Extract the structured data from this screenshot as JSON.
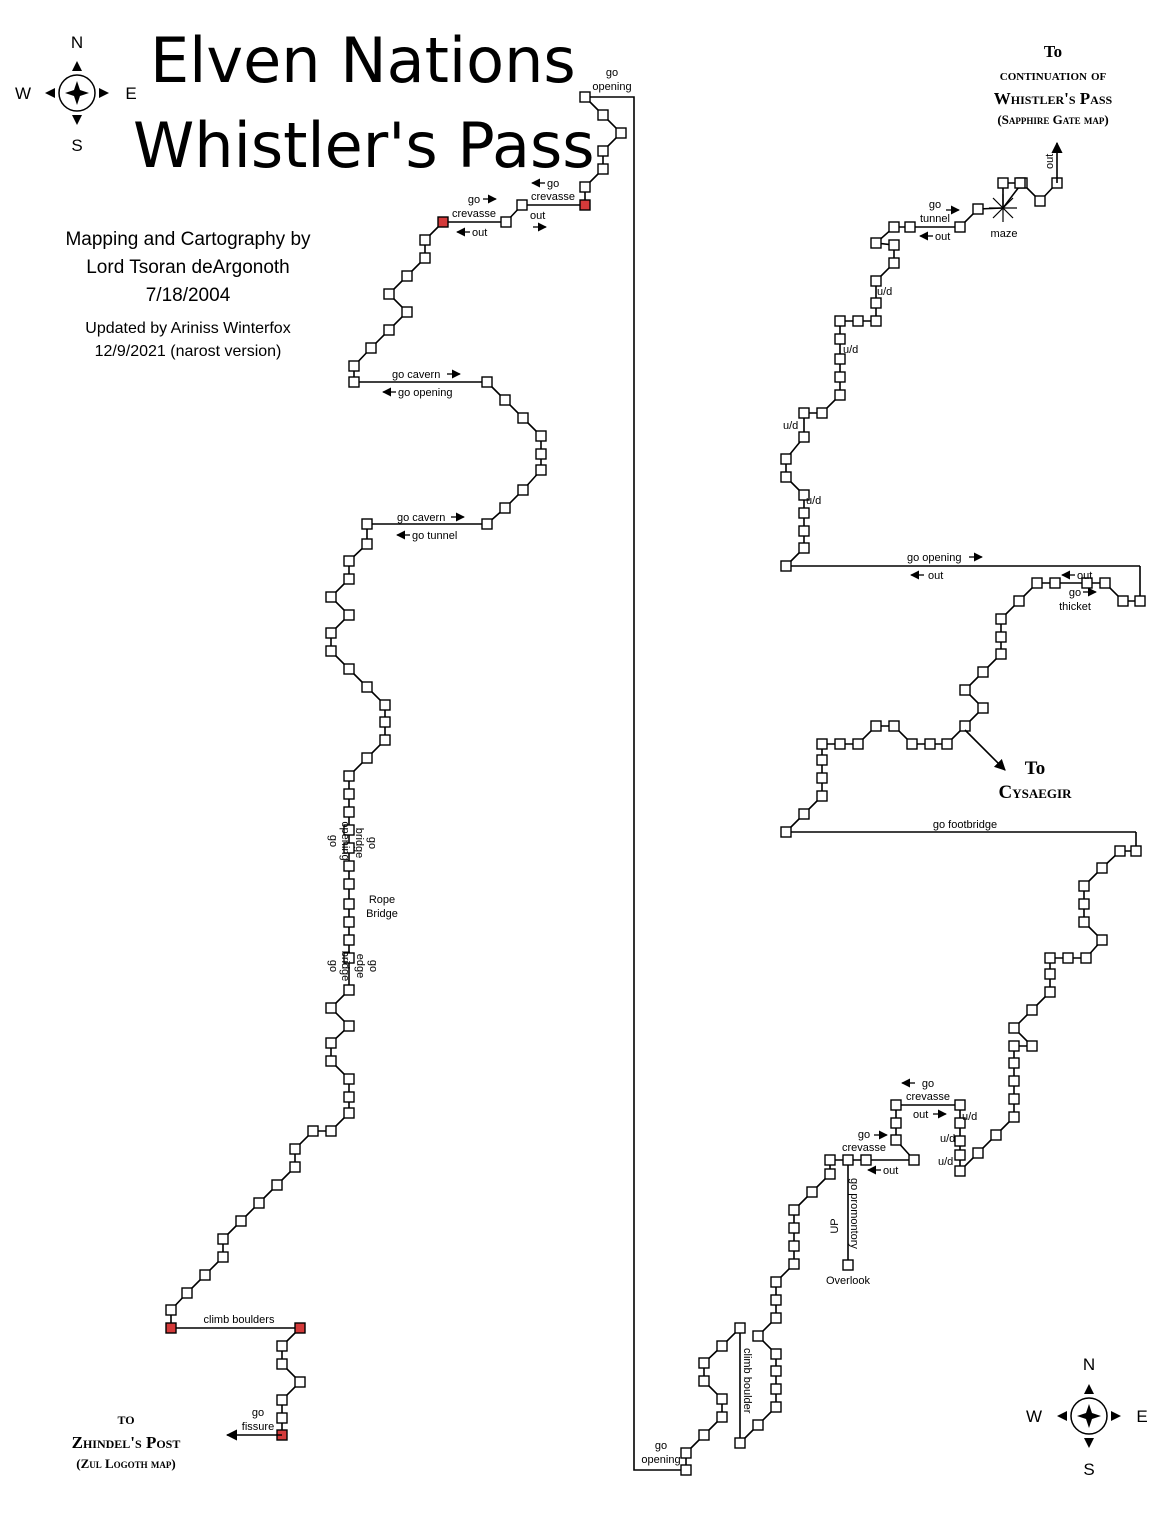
{
  "title": {
    "line1": "Elven Nations",
    "line2": "Whistler's Pass"
  },
  "credits": {
    "line1": "Mapping and Cartography by",
    "line2": "Lord Tsoran deArgonoth",
    "line3": "7/18/2004",
    "line4": "Updated by Ariniss Winterfox",
    "line5": "12/9/2021 (narost version)"
  },
  "compass": {
    "n": "N",
    "s": "S",
    "e": "E",
    "w": "W"
  },
  "destinations": {
    "ne": {
      "to": "To",
      "line1": "continuation of",
      "line2": "Whistler's Pass",
      "line3": "(Sapphire Gate map)"
    },
    "cysaegir": {
      "to": "To",
      "line1": "Cysaegir"
    },
    "sw": {
      "to": "to",
      "line1": "Zhindel's Post",
      "line2": "(Zul Logoth map)"
    }
  },
  "labels": {
    "go_opening_top": [
      "go",
      "opening"
    ],
    "go_crevasse_1": [
      "go",
      "crevasse"
    ],
    "out_1": "out",
    "go_crevasse_2": [
      "go",
      "crevasse"
    ],
    "out_2": "out",
    "go_cavern_1": "go cavern",
    "go_opening_1": "go opening",
    "go_cavern_2": "go cavern",
    "go_tunnel_1": "go tunnel",
    "go_bridge_1": [
      "go",
      "bridge"
    ],
    "go_opening_2": [
      "go",
      "opening"
    ],
    "rope_bridge": [
      "Rope",
      "Bridge"
    ],
    "go_bridge_2": [
      "go",
      "bridge"
    ],
    "go_edge": [
      "go",
      "edge"
    ],
    "climb_boulders": "climb boulders",
    "go_fissure": [
      "go",
      "fissure"
    ],
    "go_opening_bottom": [
      "go",
      "opening"
    ],
    "climb_boulder": "climb boulder",
    "go_tunnel_2": [
      "go",
      "tunnel"
    ],
    "out_3": "out",
    "maze": "maze",
    "out_4": "out",
    "ud_1": "u/d",
    "ud_2": "u/d",
    "ud_3": "u/d",
    "ud_4": "u/d",
    "go_opening_3": "go opening",
    "out_5": "out",
    "out_6": "out",
    "go_thicket": [
      "go",
      "thicket"
    ],
    "go_footbridge": "go footbridge",
    "go_crevasse_3": [
      "go",
      "crevasse"
    ],
    "out_7": "out",
    "ud_5": "u/d",
    "ud_6": "u/d",
    "ud_7": "u/d",
    "go_crevasse_4": [
      "go",
      "crevasse"
    ],
    "out_8": "out",
    "go_promontory": "go promontory",
    "up": "UP",
    "overlook": "Overlook"
  },
  "colors": {
    "special_room": "#d43a3a",
    "room": "#ffffff",
    "line": "#000000"
  }
}
